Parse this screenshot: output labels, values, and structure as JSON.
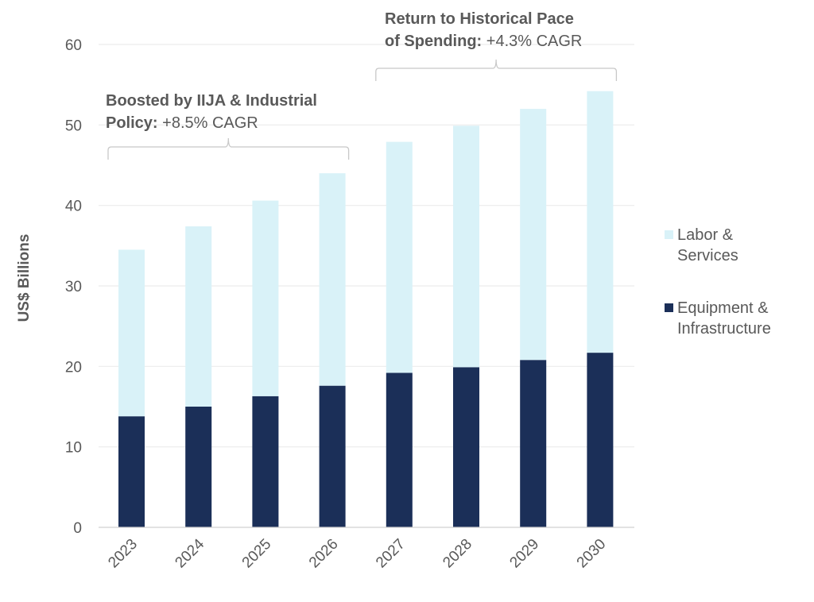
{
  "chart_data": {
    "type": "bar",
    "stacked": true,
    "title": "",
    "xlabel": "",
    "ylabel": "US$ Billions",
    "ylim": [
      0,
      60
    ],
    "yticks": [
      0,
      10,
      20,
      30,
      40,
      50,
      60
    ],
    "ytick_labels": [
      "0",
      "10",
      "20",
      "30",
      "40",
      "50",
      "60"
    ],
    "grid": true,
    "categories": [
      "2023",
      "2024",
      "2025",
      "2026",
      "2027",
      "2028",
      "2029",
      "2030"
    ],
    "series": [
      {
        "name": "Equipment & Infrastructure",
        "color": "#1b2f58",
        "values": [
          13.8,
          15.0,
          16.3,
          17.6,
          19.2,
          19.9,
          20.8,
          21.7
        ]
      },
      {
        "name": "Labor & Services",
        "color": "#d9f2f8",
        "values": [
          20.7,
          22.4,
          24.3,
          26.4,
          28.7,
          30.0,
          31.2,
          32.5
        ]
      }
    ],
    "totals": [
      34.5,
      37.4,
      40.6,
      44.0,
      47.9,
      49.9,
      52.0,
      54.2
    ],
    "legend": {
      "placement": "right",
      "entries": [
        {
          "line1": "Labor &",
          "line2": "Services",
          "color": "#d9f2f8"
        },
        {
          "line1": "Equipment &",
          "line2": "Infrastructure",
          "color": "#1b2f58"
        }
      ]
    },
    "annotations": [
      {
        "bold_line1": "Boosted by IIJA & Industrial",
        "bold_line2": "Policy:",
        "normal_line2": " +8.5% CAGR",
        "spans_categories": [
          "2023",
          "2026"
        ],
        "cagr": "+8.5%"
      },
      {
        "bold_line1": "Return to Historical Pace",
        "bold_line2": "of Spending:",
        "normal_line2": " +4.3% CAGR",
        "spans_categories": [
          "2027",
          "2030"
        ],
        "cagr": "+4.3%"
      }
    ]
  }
}
